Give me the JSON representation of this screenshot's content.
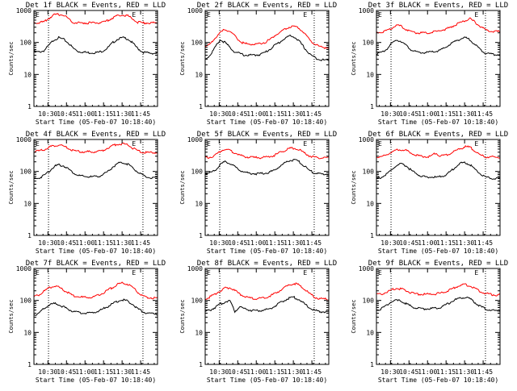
{
  "figure": {
    "background": "#ffffff",
    "axis_color": "#000000",
    "events_color": "#000000",
    "lld_color": "#ff0000",
    "x_tick_labels": [
      "10:30",
      "10:45",
      "11:00",
      "11:15",
      "11:30",
      "11:45"
    ],
    "y_tick_labels": [
      "1",
      "10",
      "100",
      "1000"
    ],
    "ylabel": "Counts/sec",
    "xlabel": "Start Time (05-Feb-07 10:18:40)",
    "e_marker": "E"
  },
  "chart_data": [
    {
      "type": "line",
      "title": "Det 1f BLACK = Events, RED = LLD",
      "x_unit": "minutes after 10:18:40",
      "ylim": [
        1,
        1000
      ],
      "xlim": [
        0,
        100
      ],
      "dotted_lines_x": [
        11.8,
        88.2
      ],
      "e_markers_x": [
        0,
        78
      ],
      "x": [
        0,
        4,
        8,
        12,
        16,
        20,
        24,
        28,
        32,
        36,
        40,
        44,
        48,
        52,
        56,
        60,
        64,
        68,
        72,
        76,
        80,
        84,
        88,
        92,
        96,
        100
      ],
      "series": [
        {
          "name": "Events",
          "color": "#000000",
          "values": [
            52,
            50,
            55,
            80,
            120,
            140,
            125,
            95,
            65,
            52,
            50,
            48,
            48,
            49,
            55,
            70,
            100,
            130,
            140,
            130,
            95,
            65,
            50,
            47,
            46,
            46
          ]
        },
        {
          "name": "LLD",
          "color": "#ff0000",
          "values": [
            420,
            420,
            430,
            560,
            720,
            750,
            720,
            560,
            420,
            410,
            410,
            410,
            410,
            410,
            420,
            490,
            600,
            700,
            720,
            680,
            550,
            430,
            410,
            410,
            410,
            410
          ]
        }
      ]
    },
    {
      "type": "line",
      "title": "Det 2f BLACK = Events, RED = LLD",
      "x_unit": "minutes after 10:18:40",
      "ylim": [
        1,
        1000
      ],
      "xlim": [
        0,
        100
      ],
      "dotted_lines_x": [
        11.8,
        88.2
      ],
      "e_markers_x": [
        0,
        78
      ],
      "x": [
        0,
        4,
        8,
        12,
        16,
        20,
        24,
        28,
        32,
        36,
        40,
        44,
        48,
        52,
        56,
        60,
        64,
        68,
        72,
        76,
        80,
        84,
        88,
        92,
        96,
        100
      ],
      "series": [
        {
          "name": "Events",
          "color": "#000000",
          "values": [
            30,
            40,
            70,
            120,
            100,
            70,
            50,
            45,
            40,
            40,
            40,
            42,
            48,
            60,
            80,
            100,
            130,
            160,
            150,
            110,
            70,
            45,
            35,
            30,
            28,
            28
          ]
        },
        {
          "name": "LLD",
          "color": "#ff0000",
          "values": [
            70,
            90,
            140,
            200,
            260,
            220,
            160,
            110,
            90,
            90,
            90,
            92,
            100,
            120,
            160,
            200,
            250,
            300,
            320,
            280,
            200,
            130,
            90,
            75,
            70,
            70
          ]
        }
      ]
    },
    {
      "type": "line",
      "title": "Det 3f BLACK = Events, RED = LLD",
      "x_unit": "minutes after 10:18:40",
      "ylim": [
        1,
        1000
      ],
      "xlim": [
        0,
        100
      ],
      "dotted_lines_x": [
        11.8,
        88.2
      ],
      "e_markers_x": [
        0,
        78
      ],
      "x": [
        0,
        4,
        8,
        12,
        16,
        20,
        24,
        28,
        32,
        36,
        40,
        44,
        48,
        52,
        56,
        60,
        64,
        68,
        72,
        76,
        80,
        84,
        88,
        92,
        96,
        100
      ],
      "series": [
        {
          "name": "Events",
          "color": "#000000",
          "values": [
            45,
            48,
            60,
            90,
            120,
            110,
            80,
            60,
            50,
            48,
            48,
            50,
            52,
            58,
            70,
            90,
            110,
            130,
            140,
            120,
            85,
            60,
            48,
            44,
            42,
            42
          ]
        },
        {
          "name": "LLD",
          "color": "#ff0000",
          "values": [
            200,
            210,
            230,
            280,
            340,
            320,
            260,
            220,
            200,
            200,
            200,
            205,
            220,
            240,
            260,
            300,
            360,
            420,
            480,
            550,
            420,
            320,
            250,
            230,
            220,
            220
          ]
        }
      ]
    },
    {
      "type": "line",
      "title": "Det 4f BLACK = Events, RED = LLD",
      "x_unit": "minutes after 10:18:40",
      "ylim": [
        1,
        1000
      ],
      "xlim": [
        0,
        100
      ],
      "dotted_lines_x": [
        11.8,
        88.2
      ],
      "e_markers_x": [
        0,
        78
      ],
      "x": [
        0,
        4,
        8,
        12,
        16,
        20,
        24,
        28,
        32,
        36,
        40,
        44,
        48,
        52,
        56,
        60,
        64,
        68,
        72,
        76,
        80,
        84,
        88,
        92,
        96,
        100
      ],
      "series": [
        {
          "name": "Events",
          "color": "#000000",
          "values": [
            60,
            62,
            75,
            100,
            140,
            160,
            150,
            120,
            90,
            75,
            70,
            68,
            68,
            70,
            80,
            100,
            140,
            180,
            190,
            170,
            130,
            95,
            75,
            65,
            62,
            62
          ]
        },
        {
          "name": "LLD",
          "color": "#ff0000",
          "values": [
            420,
            430,
            480,
            560,
            640,
            680,
            620,
            520,
            440,
            420,
            410,
            410,
            410,
            420,
            460,
            540,
            640,
            720,
            730,
            660,
            540,
            440,
            400,
            390,
            390,
            390
          ]
        }
      ]
    },
    {
      "type": "line",
      "title": "Det 5f BLACK = Events, RED = LLD",
      "x_unit": "minutes after 10:18:40",
      "ylim": [
        1,
        1000
      ],
      "xlim": [
        0,
        100
      ],
      "dotted_lines_x": [
        11.8,
        88.2
      ],
      "e_markers_x": [
        0,
        78
      ],
      "x": [
        0,
        4,
        8,
        12,
        16,
        20,
        24,
        28,
        32,
        36,
        40,
        44,
        48,
        52,
        56,
        60,
        64,
        68,
        72,
        76,
        80,
        84,
        88,
        92,
        96,
        100
      ],
      "series": [
        {
          "name": "Events",
          "color": "#000000",
          "values": [
            85,
            90,
            110,
            160,
            200,
            180,
            140,
            110,
            95,
            88,
            85,
            85,
            88,
            95,
            110,
            140,
            180,
            220,
            230,
            200,
            150,
            110,
            90,
            85,
            82,
            82
          ]
        },
        {
          "name": "LLD",
          "color": "#ff0000",
          "values": [
            270,
            280,
            320,
            420,
            500,
            460,
            380,
            320,
            290,
            280,
            270,
            270,
            275,
            290,
            320,
            380,
            450,
            520,
            540,
            480,
            380,
            310,
            280,
            270,
            260,
            260
          ]
        }
      ]
    },
    {
      "type": "line",
      "title": "Det 6f BLACK = Events, RED = LLD",
      "x_unit": "minutes after 10:18:40",
      "ylim": [
        1,
        1000
      ],
      "xlim": [
        0,
        100
      ],
      "dotted_lines_x": [
        11.8,
        88.2
      ],
      "e_markers_x": [
        0,
        78
      ],
      "x": [
        0,
        4,
        8,
        12,
        16,
        20,
        24,
        28,
        32,
        36,
        40,
        44,
        48,
        52,
        56,
        60,
        64,
        68,
        72,
        76,
        80,
        84,
        88,
        92,
        96,
        100
      ],
      "series": [
        {
          "name": "Events",
          "color": "#000000",
          "values": [
            62,
            65,
            80,
            110,
            150,
            170,
            150,
            110,
            85,
            72,
            68,
            66,
            66,
            68,
            78,
            100,
            140,
            180,
            190,
            160,
            115,
            85,
            68,
            62,
            60,
            60
          ]
        },
        {
          "name": "LLD",
          "color": "#ff0000",
          "values": [
            280,
            290,
            330,
            400,
            470,
            490,
            450,
            380,
            320,
            300,
            290,
            300,
            380,
            300,
            320,
            370,
            440,
            520,
            600,
            560,
            430,
            330,
            290,
            280,
            280,
            280
          ]
        }
      ]
    },
    {
      "type": "line",
      "title": "Det 7f BLACK = Events, RED = LLD",
      "x_unit": "minutes after 10:18:40",
      "ylim": [
        1,
        1000
      ],
      "xlim": [
        0,
        100
      ],
      "dotted_lines_x": [
        11.8,
        88.2
      ],
      "e_markers_x": [
        0,
        78
      ],
      "x": [
        0,
        4,
        8,
        12,
        16,
        20,
        24,
        28,
        32,
        36,
        40,
        44,
        48,
        52,
        56,
        60,
        64,
        68,
        72,
        76,
        80,
        84,
        88,
        92,
        96,
        100
      ],
      "series": [
        {
          "name": "Events",
          "color": "#000000",
          "values": [
            35,
            40,
            55,
            70,
            80,
            75,
            62,
            52,
            45,
            42,
            40,
            40,
            42,
            46,
            55,
            65,
            80,
            95,
            105,
            95,
            75,
            55,
            45,
            40,
            38,
            38
          ]
        },
        {
          "name": "LLD",
          "color": "#ff0000",
          "values": [
            130,
            150,
            190,
            240,
            280,
            260,
            210,
            170,
            140,
            130,
            125,
            125,
            130,
            145,
            170,
            210,
            260,
            320,
            350,
            320,
            250,
            180,
            140,
            125,
            120,
            120
          ]
        }
      ]
    },
    {
      "type": "line",
      "title": "Det 8f BLACK = Events, RED = LLD",
      "x_unit": "minutes after 10:18:40",
      "ylim": [
        1,
        1000
      ],
      "xlim": [
        0,
        100
      ],
      "dotted_lines_x": [
        11.8,
        88.2
      ],
      "e_markers_x": [
        0,
        78
      ],
      "x": [
        0,
        4,
        8,
        12,
        16,
        20,
        24,
        28,
        32,
        36,
        40,
        44,
        48,
        52,
        56,
        60,
        64,
        68,
        72,
        76,
        80,
        84,
        88,
        92,
        96,
        100
      ],
      "series": [
        {
          "name": "Events",
          "color": "#000000",
          "values": [
            45,
            50,
            60,
            75,
            90,
            100,
            45,
            65,
            55,
            50,
            48,
            48,
            50,
            55,
            65,
            80,
            100,
            120,
            125,
            105,
            80,
            60,
            50,
            45,
            44,
            44
          ]
        },
        {
          "name": "LLD",
          "color": "#ff0000",
          "values": [
            110,
            130,
            160,
            200,
            240,
            250,
            200,
            160,
            130,
            120,
            115,
            115,
            120,
            135,
            160,
            200,
            250,
            310,
            340,
            300,
            230,
            170,
            130,
            115,
            110,
            110
          ]
        }
      ]
    },
    {
      "type": "line",
      "title": "Det 9f BLACK = Events, RED = LLD",
      "x_unit": "minutes after 10:18:40",
      "ylim": [
        1,
        1000
      ],
      "xlim": [
        0,
        100
      ],
      "dotted_lines_x": [
        11.8,
        88.2
      ],
      "e_markers_x": [
        0,
        78
      ],
      "x": [
        0,
        4,
        8,
        12,
        16,
        20,
        24,
        28,
        32,
        36,
        40,
        44,
        48,
        52,
        56,
        60,
        64,
        68,
        72,
        76,
        80,
        84,
        88,
        92,
        96,
        100
      ],
      "series": [
        {
          "name": "Events",
          "color": "#000000",
          "values": [
            50,
            55,
            70,
            90,
            100,
            95,
            80,
            65,
            58,
            55,
            55,
            55,
            58,
            62,
            72,
            88,
            105,
            120,
            125,
            110,
            85,
            65,
            55,
            50,
            48,
            48
          ]
        },
        {
          "name": "LLD",
          "color": "#ff0000",
          "values": [
            150,
            160,
            180,
            210,
            240,
            230,
            200,
            175,
            160,
            155,
            155,
            155,
            160,
            170,
            190,
            220,
            260,
            300,
            310,
            280,
            230,
            190,
            165,
            155,
            150,
            150
          ]
        }
      ]
    }
  ]
}
